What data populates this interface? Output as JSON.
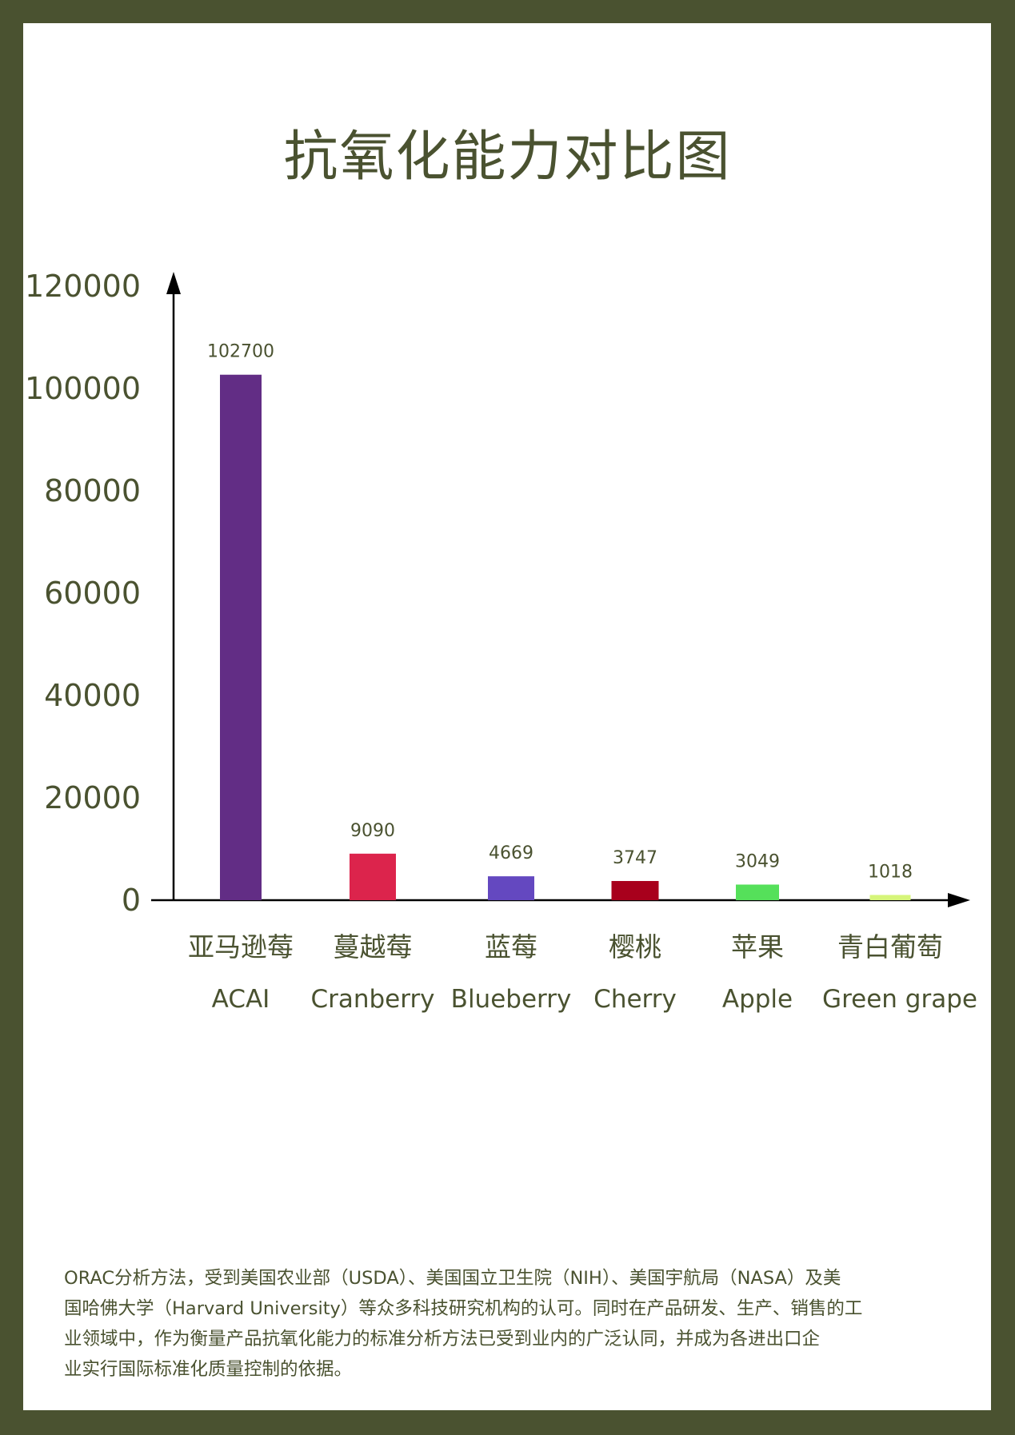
{
  "title": "抗氧化能力对比图",
  "chart_data": {
    "type": "bar",
    "title": "抗氧化能力对比图",
    "categories": [
      {
        "cn": "亚马逊莓",
        "en": "ACAI"
      },
      {
        "cn": "蔓越莓",
        "en": "Cranberry"
      },
      {
        "cn": "蓝莓",
        "en": "Blueberry"
      },
      {
        "cn": "樱桃",
        "en": "Cherry"
      },
      {
        "cn": "苹果",
        "en": "Apple"
      },
      {
        "cn": "青白葡萄",
        "en": "Green grape"
      }
    ],
    "values": [
      102700,
      9090,
      4669,
      3747,
      3049,
      1018
    ],
    "colors": [
      "#622d85",
      "#dc244c",
      "#6448c0",
      "#a8001c",
      "#55e05a",
      "#d6f57a"
    ],
    "yticks": [
      0,
      20000,
      40000,
      60000,
      80000,
      100000,
      120000
    ],
    "ylim": [
      0,
      120000
    ],
    "grid": false,
    "legend": "none"
  },
  "footer": {
    "lines": [
      "ORAC分析方法，受到美国农业部（USDA）、美国国立卫生院（NIH）、美国宇航局（NASA）及美",
      "国哈佛大学（Harvard University）等众多科技研究机构的认可。同时在产品研发、生产、销售的工",
      "业领域中，作为衡量产品抗氧化能力的标准分析方法已受到业内的广泛认同，并成为各进出口企",
      "业实行国际标准化质量控制的依据。"
    ]
  }
}
